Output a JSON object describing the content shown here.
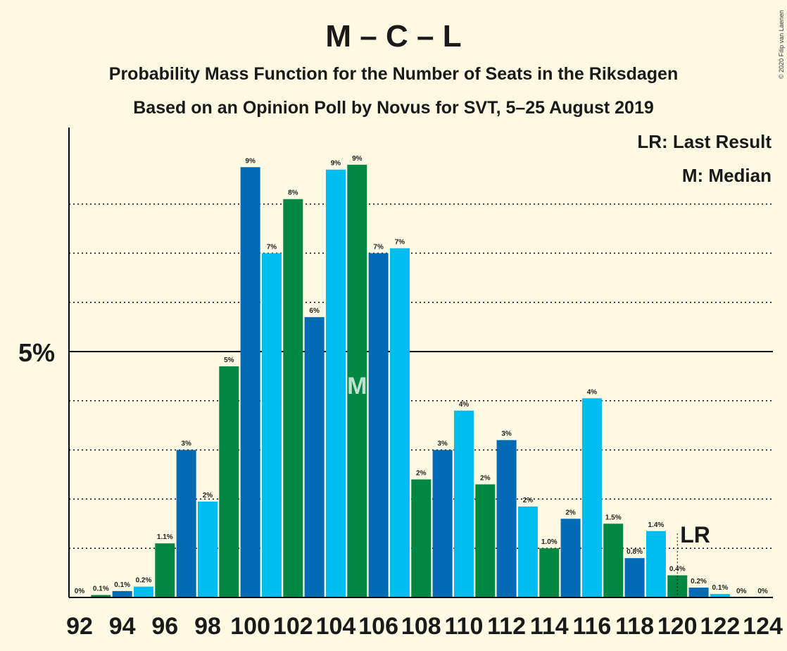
{
  "chart_data": {
    "type": "bar",
    "title": "M – C – L",
    "subtitle1": "Probability Mass Function for the Number of Seats in the Riksdagen",
    "subtitle2": "Based on an Opinion Poll by Novus for SVT, 5–25 August 2019",
    "copyright": "© 2020 Filip van Laenen",
    "legend": {
      "lr": "LR: Last Result",
      "m": "M: Median",
      "placement": "top-right"
    },
    "ytick_label": "5%",
    "ytick_value": 5,
    "ylim": [
      0,
      9.6
    ],
    "grid_minor": [
      1,
      2,
      3,
      4,
      6,
      7,
      8
    ],
    "x_tick_labels": [
      "92",
      "94",
      "96",
      "98",
      "100",
      "102",
      "104",
      "106",
      "108",
      "110",
      "112",
      "114",
      "116",
      "118",
      "120",
      "122",
      "124"
    ],
    "seats": [
      92,
      93,
      94,
      95,
      96,
      97,
      98,
      99,
      100,
      101,
      102,
      103,
      104,
      105,
      106,
      107,
      108,
      109,
      110,
      111,
      112,
      113,
      114,
      115,
      116,
      117,
      118,
      119,
      120,
      121,
      122,
      123,
      124
    ],
    "values": [
      0,
      0.05,
      0.13,
      0.22,
      1.1,
      3.0,
      1.95,
      4.7,
      8.75,
      7.0,
      8.1,
      5.7,
      8.7,
      8.8,
      7.0,
      7.1,
      2.4,
      3.0,
      3.8,
      2.3,
      3.2,
      1.85,
      1.0,
      1.6,
      4.05,
      1.5,
      0.8,
      1.35,
      0.45,
      0.2,
      0.07,
      0,
      0
    ],
    "data_labels": [
      "0%",
      "0.1%",
      "0.1%",
      "0.2%",
      "1.1%",
      "3%",
      "2%",
      "5%",
      "9%",
      "7%",
      "8%",
      "6%",
      "9%",
      "9%",
      "7%",
      "7%",
      "2%",
      "3%",
      "4%",
      "2%",
      "3%",
      "2%",
      "1.0%",
      "2%",
      "4%",
      "1.5%",
      "0.8%",
      "1.4%",
      "0.4%",
      "0.2%",
      "0.1%",
      "0%",
      "0%"
    ],
    "median_seat": 105,
    "median_marker": "M",
    "last_result_seat": 120,
    "last_result_marker": "LR",
    "colors": {
      "light_blue": "#00bdf0",
      "green": "#008842",
      "dark_blue": "#006ab4",
      "background": "#fef9e2",
      "line": "#000000"
    }
  }
}
